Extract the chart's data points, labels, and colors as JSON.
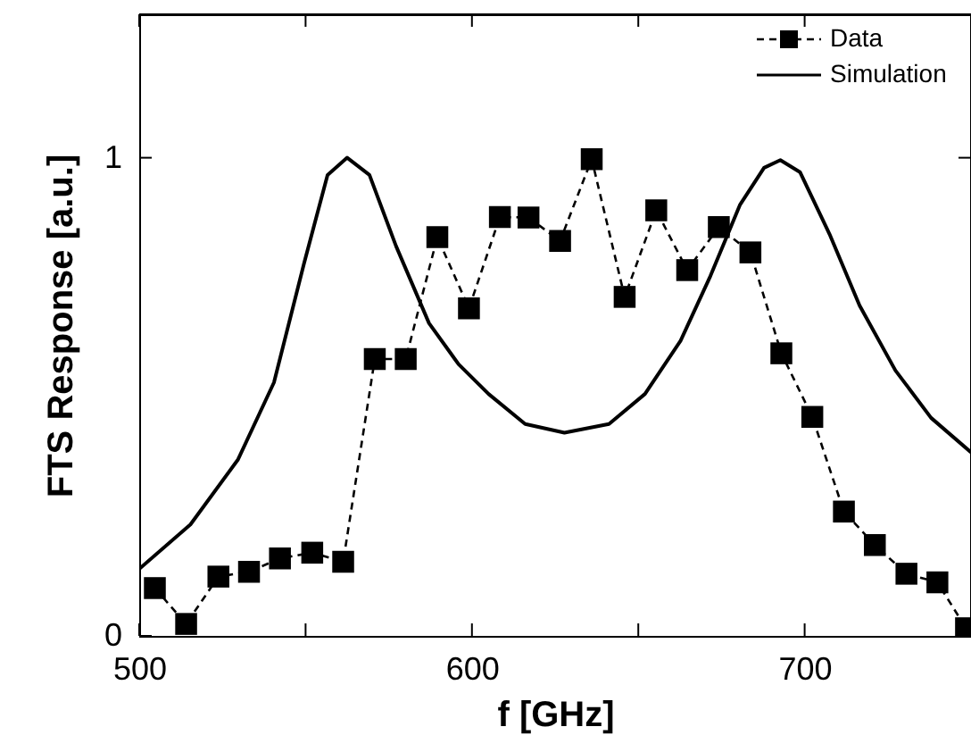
{
  "chart_data": {
    "type": "line",
    "xlabel": "f [GHz]",
    "ylabel": "FTS Response [a.u.]",
    "xlim": [
      500,
      750
    ],
    "xticks": [
      500,
      {
        "value": 550,
        "label": null
      },
      600,
      {
        "value": 650,
        "label": null
      },
      700
    ],
    "ylim": [
      0,
      1.3
    ],
    "yticks": [
      0,
      1
    ],
    "grid": false,
    "legend": "top right",
    "series": [
      {
        "name": "Data",
        "color": "#000000",
        "marker": "square",
        "line_style": "dashed",
        "x": [
          504.7,
          514.1,
          523.8,
          533,
          542.3,
          552,
          561.3,
          570.8,
          580.1,
          589.6,
          599.1,
          608.4,
          617,
          626.5,
          636,
          645.9,
          655.4,
          664.7,
          674.2,
          683.7,
          693,
          702.3,
          711.8,
          721.1,
          730.6,
          739.9,
          748.5
        ],
        "values": [
          0.1,
          0.025,
          0.124,
          0.134,
          0.162,
          0.174,
          0.155,
          0.579,
          0.579,
          0.834,
          0.685,
          0.876,
          0.875,
          0.826,
          0.997,
          0.709,
          0.89,
          0.765,
          0.855,
          0.802,
          0.591,
          0.458,
          0.26,
          0.19,
          0.13,
          0.112,
          0.016
        ]
      },
      {
        "name": "Simulation",
        "color": "#000000",
        "marker": "none",
        "line_style": "solid",
        "x": [
          500,
          515.4,
          529.7,
          540.5,
          549.5,
          556.6,
          562.5,
          569.2,
          577.2,
          587.1,
          596,
          605,
          616,
          627.8,
          641.2,
          652,
          662.7,
          671.7,
          680.6,
          687.8,
          692.7,
          698.6,
          707.5,
          716.5,
          727.3,
          738,
          750
        ],
        "values": [
          0.14,
          0.233,
          0.369,
          0.53,
          0.778,
          0.964,
          1.0,
          0.964,
          0.815,
          0.654,
          0.568,
          0.506,
          0.443,
          0.425,
          0.443,
          0.506,
          0.617,
          0.753,
          0.902,
          0.979,
          0.995,
          0.97,
          0.84,
          0.691,
          0.555,
          0.456,
          0.384
        ]
      }
    ]
  }
}
